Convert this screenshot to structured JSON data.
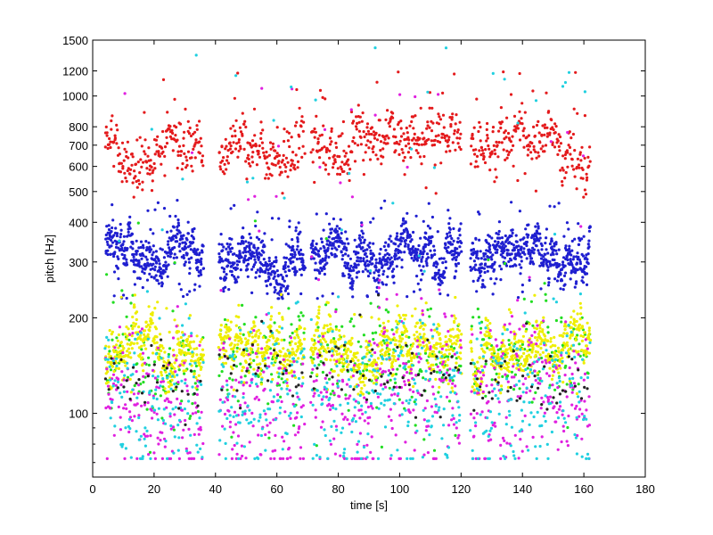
{
  "chart_data": {
    "type": "scatter",
    "title": "",
    "xlabel": "time [s]",
    "ylabel": "pitch [Hz]",
    "xlim": [
      0,
      180
    ],
    "ylim": [
      63,
      1500
    ],
    "yscale": "log",
    "grid": false,
    "x_ticks": [
      0,
      20,
      40,
      60,
      80,
      100,
      120,
      140,
      160,
      180
    ],
    "x_tick_labels": [
      "0",
      "20",
      "40",
      "60",
      "80",
      "100",
      "120",
      "140",
      "160",
      "180"
    ],
    "y_ticks": [
      100,
      200,
      300,
      400,
      500,
      600,
      700,
      800,
      1000,
      1200,
      1500
    ],
    "y_tick_labels": [
      "100",
      "200",
      "300",
      "400",
      "500",
      "600",
      "700",
      "800",
      "1000",
      "1200",
      "1500"
    ],
    "segments": [
      {
        "start": 4,
        "end": 36
      },
      {
        "start": 41,
        "end": 69
      },
      {
        "start": 71,
        "end": 120
      },
      {
        "start": 123,
        "end": 162
      }
    ],
    "series": [
      {
        "name": "red",
        "color": "#e41a1c",
        "band": [
          480,
          1200
        ],
        "center": 700,
        "density": 6
      },
      {
        "name": "blue",
        "color": "#1f1fd0",
        "band": [
          230,
          470
        ],
        "center": 320,
        "density": 12
      },
      {
        "name": "green",
        "color": "#22dd22",
        "band": [
          75,
          420
        ],
        "center": 150,
        "density": 3
      },
      {
        "name": "yellow",
        "color": "#eeee00",
        "band": [
          115,
          240
        ],
        "center": 160,
        "density": 10
      },
      {
        "name": "magenta",
        "color": "#e020e0",
        "band": [
          72,
          1100
        ],
        "center": 120,
        "density": 5
      },
      {
        "name": "cyan",
        "color": "#20d0e0",
        "band": [
          72,
          1450
        ],
        "center": 115,
        "density": 4
      },
      {
        "name": "black",
        "color": "#222222",
        "band": [
          72,
          260
        ],
        "center": 130,
        "density": 1
      }
    ]
  }
}
